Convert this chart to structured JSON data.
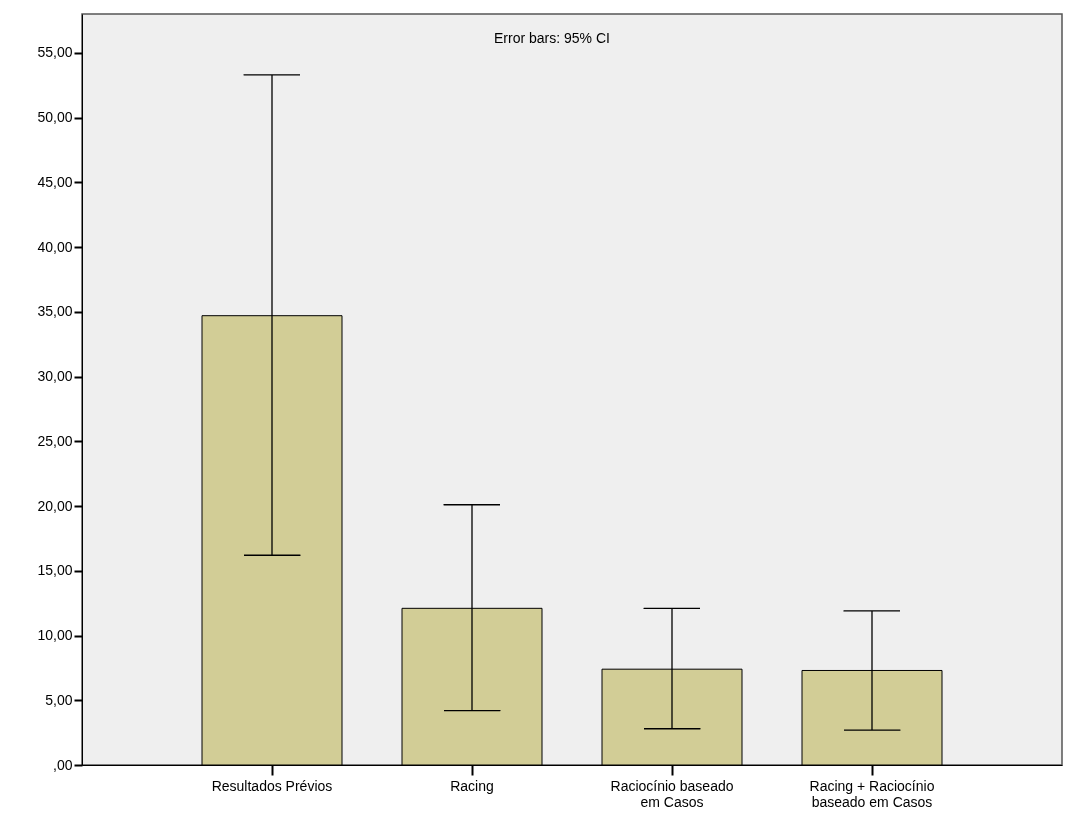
{
  "chart_data": {
    "type": "bar",
    "categories": [
      "Resultados Prévios",
      "Racing",
      "Raciocínio baseado\nem Casos",
      "Racing + Raciocínio\nbaseado em Casos"
    ],
    "values": [
      34.7,
      12.1,
      7.4,
      7.3
    ],
    "errors": [
      [
        16.2,
        53.3
      ],
      [
        4.2,
        20.1
      ],
      [
        2.8,
        12.1
      ],
      [
        2.7,
        11.9
      ]
    ],
    "color": "#d2cd96",
    "ylim": [
      0,
      58
    ],
    "yticks": [
      {
        "value": 0,
        "label": ",00"
      },
      {
        "value": 5,
        "label": "5,00"
      },
      {
        "value": 10,
        "label": "10,00"
      },
      {
        "value": 15,
        "label": "15,00"
      },
      {
        "value": 20,
        "label": "20,00"
      },
      {
        "value": 25,
        "label": "25,00"
      },
      {
        "value": 30,
        "label": "30,00"
      },
      {
        "value": 35,
        "label": "35,00"
      },
      {
        "value": 40,
        "label": "40,00"
      },
      {
        "value": 45,
        "label": "45,00"
      },
      {
        "value": 50,
        "label": "50,00"
      },
      {
        "value": 55,
        "label": "55,00"
      }
    ],
    "annotations": [
      "Error bars: 95% CI"
    ],
    "grid": false
  }
}
